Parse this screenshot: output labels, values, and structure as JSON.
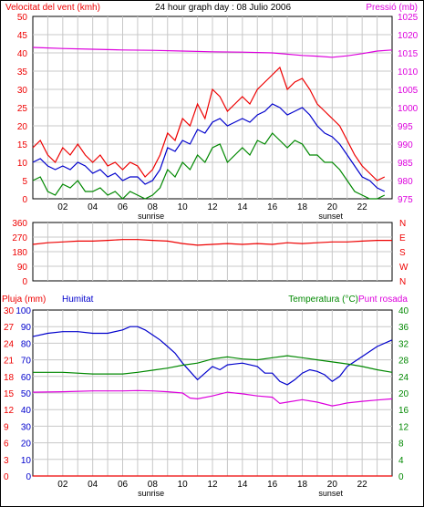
{
  "colors": {
    "red": "#ee0000",
    "blue": "#0000cc",
    "green": "#008800",
    "magenta": "#dd00dd",
    "grid": "#c8c8c8",
    "axis": "#000000"
  },
  "chart_data": [
    {
      "type": "line",
      "title": "24 hour graph day : 08 Julio 2006",
      "left_label": "Velocitat del vent (kmh)",
      "right_label": "Pressió (mb)",
      "y_left_ticks": [
        "0",
        "5",
        "10",
        "15",
        "20",
        "25",
        "30",
        "35",
        "40",
        "45",
        "50"
      ],
      "y_left_range": [
        0,
        50
      ],
      "y_right_ticks": [
        "975",
        "980",
        "985",
        "990",
        "995",
        "1000",
        "1005",
        "1010",
        "1015",
        "1020",
        "1025"
      ],
      "y_right_range": [
        975,
        1025
      ],
      "x_ticks": [
        "02",
        "04",
        "06",
        "08",
        "10",
        "12",
        "14",
        "16",
        "18",
        "20",
        "22"
      ],
      "x_range": [
        0,
        24
      ],
      "event_labels": {
        "sunrise": "sunrise",
        "sunset": "sunset"
      },
      "event_hours": {
        "sunrise": 7.9,
        "sunset": 19.9
      },
      "series": [
        {
          "name": "gust",
          "axis": "left",
          "color": "red",
          "x": [
            0,
            0.5,
            1,
            1.5,
            2,
            2.5,
            3,
            3.5,
            4,
            4.5,
            5,
            5.5,
            6,
            6.5,
            7,
            7.5,
            8,
            8.5,
            9,
            9.5,
            10,
            10.5,
            11,
            11.5,
            12,
            12.5,
            13,
            13.5,
            14,
            14.5,
            15,
            15.5,
            16,
            16.5,
            17,
            17.5,
            18,
            18.5,
            19,
            19.5,
            20,
            20.5,
            21,
            21.5,
            22,
            22.5,
            23,
            23.5
          ],
          "y": [
            14,
            16,
            12,
            10,
            14,
            12,
            15,
            12,
            10,
            12,
            9,
            10,
            8,
            10,
            9,
            6,
            8,
            12,
            18,
            16,
            22,
            20,
            26,
            22,
            30,
            28,
            24,
            26,
            28,
            26,
            30,
            32,
            34,
            36,
            30,
            32,
            33,
            30,
            26,
            24,
            22,
            20,
            16,
            12,
            9,
            7,
            5,
            6
          ]
        },
        {
          "name": "average",
          "axis": "left",
          "color": "blue",
          "x": [
            0,
            0.5,
            1,
            1.5,
            2,
            2.5,
            3,
            3.5,
            4,
            4.5,
            5,
            5.5,
            6,
            6.5,
            7,
            7.5,
            8,
            8.5,
            9,
            9.5,
            10,
            10.5,
            11,
            11.5,
            12,
            12.5,
            13,
            13.5,
            14,
            14.5,
            15,
            15.5,
            16,
            16.5,
            17,
            17.5,
            18,
            18.5,
            19,
            19.5,
            20,
            20.5,
            21,
            21.5,
            22,
            22.5,
            23,
            23.5
          ],
          "y": [
            10,
            11,
            9,
            8,
            9,
            8,
            10,
            9,
            7,
            8,
            6,
            7,
            5,
            6,
            6,
            4,
            5,
            8,
            14,
            13,
            16,
            15,
            19,
            18,
            21,
            22,
            20,
            21,
            22,
            21,
            23,
            24,
            26,
            25,
            23,
            24,
            25,
            23,
            20,
            18,
            17,
            15,
            12,
            9,
            6,
            5,
            3,
            2
          ]
        },
        {
          "name": "min",
          "axis": "left",
          "color": "green",
          "x": [
            0,
            0.5,
            1,
            1.5,
            2,
            2.5,
            3,
            3.5,
            4,
            4.5,
            5,
            5.5,
            6,
            6.5,
            7,
            7.5,
            8,
            8.5,
            9,
            9.5,
            10,
            10.5,
            11,
            11.5,
            12,
            12.5,
            13,
            13.5,
            14,
            14.5,
            15,
            15.5,
            16,
            16.5,
            17,
            17.5,
            18,
            18.5,
            19,
            19.5,
            20,
            20.5,
            21,
            21.5,
            22,
            22.5,
            23,
            23.5
          ],
          "y": [
            5,
            6,
            2,
            1,
            4,
            3,
            5,
            2,
            2,
            3,
            1,
            2,
            0,
            2,
            1,
            0,
            1,
            3,
            8,
            6,
            10,
            8,
            12,
            10,
            14,
            15,
            10,
            12,
            14,
            12,
            16,
            15,
            18,
            16,
            14,
            16,
            15,
            12,
            12,
            10,
            10,
            8,
            5,
            2,
            1,
            0,
            0,
            1
          ]
        },
        {
          "name": "pressure",
          "axis": "right",
          "color": "magenta",
          "x": [
            0,
            2,
            4,
            6,
            8,
            10,
            12,
            14,
            16,
            18,
            19,
            20,
            21,
            22,
            23,
            24
          ],
          "y": [
            1016.5,
            1016.2,
            1016,
            1015.8,
            1015.7,
            1015.5,
            1015.3,
            1015.2,
            1015,
            1014.3,
            1014.1,
            1013.8,
            1014.2,
            1014.8,
            1015.5,
            1015.8
          ]
        }
      ]
    },
    {
      "type": "line",
      "y_left_ticks": [
        "0",
        "90",
        "180",
        "270",
        "360"
      ],
      "y_left_range": [
        0,
        360
      ],
      "y_right_ticks": [
        "N",
        "W",
        "S",
        "E",
        "N"
      ],
      "series": [
        {
          "name": "direction",
          "axis": "left",
          "color": "red",
          "x": [
            0,
            1,
            2,
            3,
            4,
            5,
            6,
            7,
            8,
            9,
            10,
            11,
            12,
            13,
            14,
            15,
            16,
            17,
            18,
            19,
            20,
            21,
            22,
            23,
            24
          ],
          "y": [
            225,
            235,
            240,
            245,
            245,
            250,
            255,
            255,
            250,
            245,
            230,
            220,
            225,
            230,
            225,
            230,
            225,
            235,
            230,
            235,
            240,
            240,
            245,
            250,
            250
          ]
        }
      ]
    },
    {
      "type": "line",
      "left_label_1": "Pluja (mm)",
      "left_label_2": "Humitat",
      "right_label_1": "Temperatura (°C)",
      "right_label_2": "Punt rosada",
      "y_rain_ticks": [
        "0",
        "3",
        "6",
        "9",
        "12",
        "15",
        "18",
        "21",
        "24",
        "27",
        "30"
      ],
      "y_rain_range": [
        0,
        30
      ],
      "y_hum_ticks": [
        "0",
        "10",
        "20",
        "30",
        "40",
        "50",
        "60",
        "70",
        "80",
        "90",
        "100"
      ],
      "y_hum_range": [
        0,
        100
      ],
      "y_temp_ticks": [
        "0",
        "4",
        "8",
        "12",
        "16",
        "20",
        "24",
        "28",
        "32",
        "36",
        "40"
      ],
      "y_temp_range": [
        0,
        40
      ],
      "x_ticks": [
        "02",
        "04",
        "06",
        "08",
        "10",
        "12",
        "14",
        "16",
        "18",
        "20",
        "22"
      ],
      "x_range": [
        0,
        24
      ],
      "event_labels": {
        "sunrise": "sunrise",
        "sunset": "sunset"
      },
      "event_hours": {
        "sunrise": 7.9,
        "sunset": 19.9
      },
      "series": [
        {
          "name": "humidity",
          "axis": "hum",
          "color": "blue",
          "x": [
            0,
            1,
            2,
            3,
            4,
            5,
            6,
            6.5,
            7,
            7.5,
            8,
            8.5,
            9,
            9.5,
            10,
            10.5,
            11,
            11.5,
            12,
            12.5,
            13,
            14,
            15,
            15.5,
            16,
            16.5,
            17,
            17.5,
            18,
            18.5,
            19,
            19.5,
            20,
            20.5,
            21,
            22,
            23,
            24
          ],
          "y": [
            84,
            86,
            87,
            87,
            86,
            86,
            88,
            90,
            90,
            88,
            85,
            82,
            78,
            74,
            68,
            63,
            58,
            62,
            66,
            64,
            67,
            68,
            66,
            62,
            62,
            57,
            55,
            58,
            62,
            64,
            63,
            61,
            57,
            60,
            66,
            72,
            78,
            82
          ]
        },
        {
          "name": "temperature",
          "axis": "temp",
          "color": "green",
          "x": [
            0,
            2,
            4,
            6,
            7,
            8,
            9,
            10,
            11,
            12,
            13,
            14,
            15,
            16,
            17,
            18,
            19,
            20,
            21,
            22,
            23,
            24
          ],
          "y": [
            25,
            25,
            24.6,
            24.6,
            25,
            25.5,
            26,
            26.7,
            27.2,
            28.2,
            28.7,
            28.2,
            28,
            28.5,
            29,
            28.5,
            28,
            27.5,
            27,
            26.4,
            25.6,
            25
          ]
        },
        {
          "name": "dewpoint",
          "axis": "temp",
          "color": "magenta",
          "x": [
            0,
            2,
            4,
            6,
            7,
            8,
            9,
            10,
            10.5,
            11,
            12,
            13,
            14,
            15,
            16,
            16.5,
            17,
            18,
            19,
            20,
            20.5,
            21,
            22,
            23,
            24
          ],
          "y": [
            20.2,
            20.3,
            20.5,
            20.5,
            20.6,
            20.5,
            20.3,
            20,
            18.8,
            18.6,
            19.3,
            20.2,
            19.8,
            19.3,
            19,
            17.5,
            17.8,
            18.4,
            17.8,
            16.9,
            17.2,
            17.6,
            18,
            18.3,
            18.6
          ]
        },
        {
          "name": "rain",
          "axis": "rain",
          "color": "red",
          "x": [
            0,
            24
          ],
          "y": [
            0,
            0
          ]
        }
      ]
    }
  ]
}
